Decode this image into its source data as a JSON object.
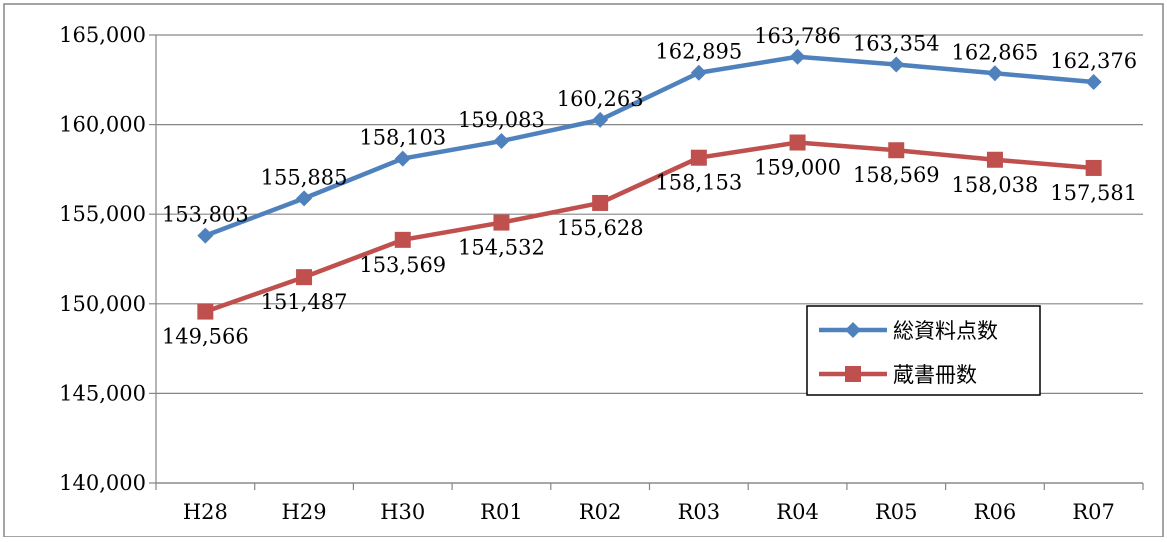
{
  "chart_data": {
    "type": "line",
    "categories": [
      "H28",
      "H29",
      "H30",
      "R01",
      "R02",
      "R03",
      "R04",
      "R05",
      "R06",
      "R07"
    ],
    "series": [
      {
        "name": "総資料点数",
        "color": "#4F81BD",
        "marker": "diamond",
        "values": [
          153803,
          155885,
          158103,
          159083,
          160263,
          162895,
          163786,
          163354,
          162865,
          162376
        ],
        "labels": [
          "153,803",
          "155,885",
          "158,103",
          "159,083",
          "160,263",
          "162,895",
          "163,786",
          "163,354",
          "162,865",
          "162,376"
        ],
        "label_position": "above"
      },
      {
        "name": "蔵書冊数",
        "color": "#C0504D",
        "marker": "square",
        "values": [
          149566,
          151487,
          153569,
          154532,
          155628,
          158153,
          159000,
          158569,
          158038,
          157581
        ],
        "labels": [
          "149,566",
          "151,487",
          "153,569",
          "154,532",
          "155,628",
          "158,153",
          "159,000",
          "158,569",
          "158,038",
          "157,581"
        ],
        "label_position": "below"
      }
    ],
    "ylim": [
      140000,
      165000
    ],
    "yticks": [
      140000,
      145000,
      150000,
      155000,
      160000,
      165000
    ],
    "ytick_labels": [
      "140,000",
      "145,000",
      "150,000",
      "155,000",
      "160,000",
      "165,000"
    ],
    "grid": true,
    "legend_position": "inside-right",
    "title": "",
    "xlabel": "",
    "ylabel": ""
  }
}
